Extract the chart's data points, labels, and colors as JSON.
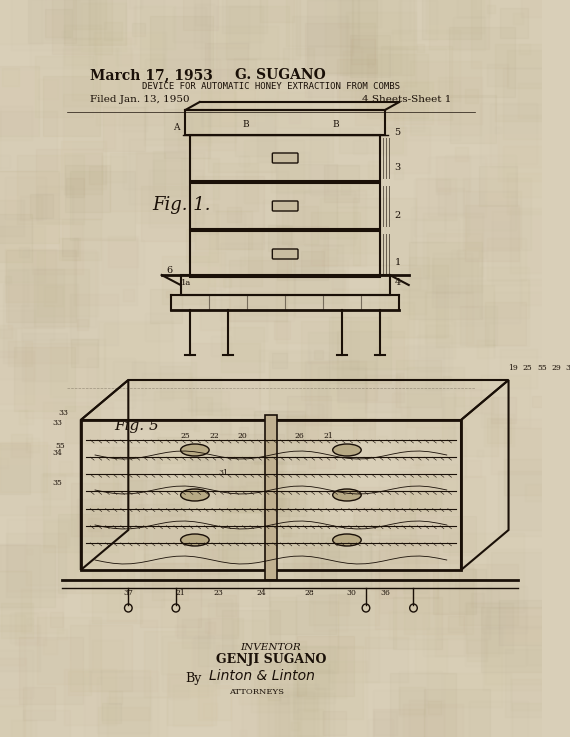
{
  "bg_color": "#d9cfb8",
  "paper_texture": true,
  "title_left": "March 17, 1953",
  "title_center": "G. SUGANO",
  "subtitle": "DEVICE FOR AUTOMATIC HONEY EXTRACTION FROM COMBS",
  "filed_left": "Filed Jan. 13, 1950",
  "filed_right": "4 Sheets-Sheet 1",
  "fig1_label": "Fig. 1.",
  "fig5_label": "Fig. 5",
  "inventor_label": "INVENTOR",
  "inventor_name": "GENJI SUGANO",
  "attorney_by": "By",
  "attorney_name": "Linton & Linton",
  "attorney_title": "ATTORNEYS",
  "ink_color": "#1a1008",
  "light_ink": "#3a2810"
}
